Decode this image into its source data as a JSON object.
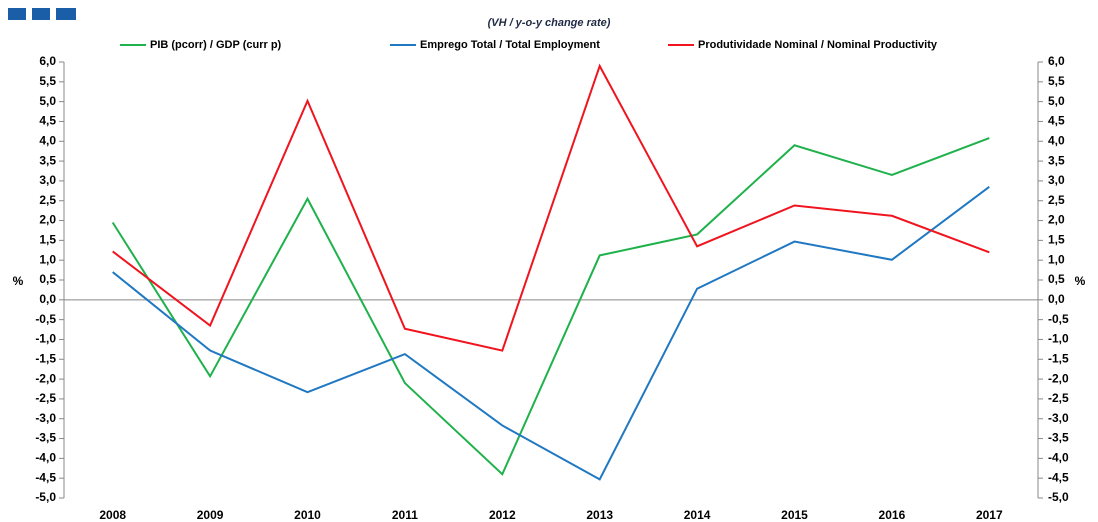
{
  "chart_data": {
    "type": "line",
    "subtitle": "(VH / y-o-y change rate)",
    "y_label": "%",
    "y2_label": "%",
    "categories": [
      "2008",
      "2009",
      "2010",
      "2011",
      "2012",
      "2013",
      "2014",
      "2015",
      "2016",
      "2017"
    ],
    "series": [
      {
        "name": "PIB (pcorr) / GDP (curr p)",
        "color": "#1fb14b",
        "values": [
          1.95,
          -1.93,
          2.55,
          -2.1,
          -4.4,
          1.12,
          1.65,
          3.9,
          3.15,
          4.08
        ]
      },
      {
        "name": "Emprego Total / Total Employment",
        "color": "#1f78c1",
        "values": [
          0.7,
          -1.28,
          -2.33,
          -1.37,
          -3.17,
          -4.53,
          0.28,
          1.47,
          1.01,
          2.85
        ]
      },
      {
        "name": "Produtividade Nominal / Nominal Productivity",
        "color": "#f0141e",
        "values": [
          1.22,
          -0.65,
          5.02,
          -0.73,
          -1.28,
          5.9,
          1.35,
          2.38,
          2.12,
          1.2
        ]
      }
    ],
    "ylim": [
      -5,
      6
    ],
    "yticks": [
      {
        "value": 6,
        "label": "6,0"
      },
      {
        "value": 5.5,
        "label": "5,5"
      },
      {
        "value": 5,
        "label": "5,0"
      },
      {
        "value": 4.5,
        "label": "4,5"
      },
      {
        "value": 4,
        "label": "4,0"
      },
      {
        "value": 3.5,
        "label": "3,5"
      },
      {
        "value": 3,
        "label": "3,0"
      },
      {
        "value": 2.5,
        "label": "2,5"
      },
      {
        "value": 2,
        "label": "2,0"
      },
      {
        "value": 1.5,
        "label": "1,5"
      },
      {
        "value": 1,
        "label": "1,0"
      },
      {
        "value": 0.5,
        "label": "0,5"
      },
      {
        "value": 0,
        "label": "0,0"
      },
      {
        "value": -0.5,
        "label": "-0,5"
      },
      {
        "value": -1,
        "label": "-1,0"
      },
      {
        "value": -1.5,
        "label": "-1,5"
      },
      {
        "value": -2,
        "label": "-2,0"
      },
      {
        "value": -2.5,
        "label": "-2,5"
      },
      {
        "value": -3,
        "label": "-3,0"
      },
      {
        "value": -3.5,
        "label": "-3,5"
      },
      {
        "value": -4,
        "label": "-4,0"
      },
      {
        "value": -4.5,
        "label": "-4,5"
      },
      {
        "value": -5,
        "label": "-5,0"
      }
    ],
    "y2lim": [
      -5,
      6
    ],
    "y2ticks": [
      {
        "value": 6,
        "label": "6,0"
      },
      {
        "value": 5.5,
        "label": "5,5"
      },
      {
        "value": 5,
        "label": "5,0"
      },
      {
        "value": 4.5,
        "label": "4,5"
      },
      {
        "value": 4,
        "label": "4,0"
      },
      {
        "value": 3.5,
        "label": "3,5"
      },
      {
        "value": 3,
        "label": "3,0"
      },
      {
        "value": 2.5,
        "label": "2,5"
      },
      {
        "value": 2,
        "label": "2,0"
      },
      {
        "value": 1.5,
        "label": "1,5"
      },
      {
        "value": 1,
        "label": "1,0"
      },
      {
        "value": 0.5,
        "label": "0,5"
      },
      {
        "value": 0,
        "label": "0,0"
      },
      {
        "value": -0.5,
        "label": "-0,5"
      },
      {
        "value": -1,
        "label": "-1,0"
      },
      {
        "value": -1.5,
        "label": "-1,5"
      },
      {
        "value": -2,
        "label": "-2,0"
      },
      {
        "value": -2.5,
        "label": "-2,5"
      },
      {
        "value": -3,
        "label": "-3,0"
      },
      {
        "value": -3.5,
        "label": "-3,5"
      },
      {
        "value": -4,
        "label": "-4,0"
      },
      {
        "value": -4.5,
        "label": "-4,5"
      },
      {
        "value": -5,
        "label": "-5,0"
      }
    ],
    "grid": false
  }
}
